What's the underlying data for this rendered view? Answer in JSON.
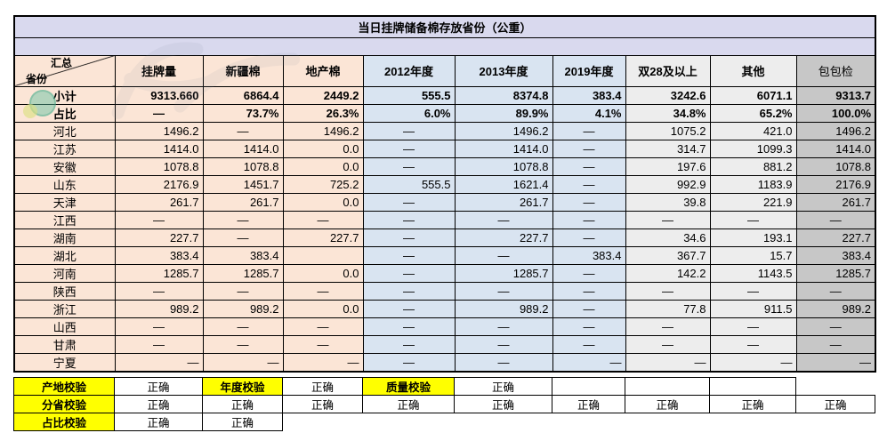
{
  "title": "当日挂牌储备棉存放省份（公重）",
  "main_table": {
    "corner": {
      "top": "汇总",
      "bottom": "省份"
    },
    "columns": [
      "挂牌量",
      "新疆棉",
      "地产棉",
      "2012年度",
      "2013年度",
      "2019年度",
      "双28及以上",
      "其他",
      "包包检"
    ],
    "rows": [
      {
        "label": "小计",
        "bold": true,
        "cells": [
          "9313.660",
          "6864.4",
          "2449.2",
          "555.5",
          "8374.8",
          "383.4",
          "3242.6",
          "6071.1",
          "9313.7"
        ]
      },
      {
        "label": "占比",
        "bold": true,
        "cells": [
          "—",
          "73.7%",
          "26.3%",
          "6.0%",
          "89.9%",
          "4.1%",
          "34.8%",
          "65.2%",
          "100.0%"
        ]
      },
      {
        "label": "河北",
        "cells": [
          "1496.2",
          "—",
          "1496.2",
          "—",
          "1496.2",
          "—",
          "1075.2",
          "421.0",
          "1496.2"
        ]
      },
      {
        "label": "江苏",
        "cells": [
          "1414.0",
          "1414.0",
          "0.0",
          "—",
          "1414.0",
          "—",
          "314.7",
          "1099.3",
          "1414.0"
        ]
      },
      {
        "label": "安徽",
        "cells": [
          "1078.8",
          "1078.8",
          "0.0",
          "—",
          "1078.8",
          "—",
          "197.6",
          "881.2",
          "1078.8"
        ]
      },
      {
        "label": "山东",
        "cells": [
          "2176.9",
          "1451.7",
          "725.2",
          "555.5",
          "1621.4",
          "—",
          "992.9",
          "1183.9",
          "2176.9"
        ]
      },
      {
        "label": "天津",
        "cells": [
          "261.7",
          "261.7",
          "0.0",
          "—",
          "261.7",
          "—",
          "39.8",
          "221.9",
          "261.7"
        ]
      },
      {
        "label": "江西",
        "cells": [
          "—",
          "—",
          "—",
          "—",
          "—",
          "—",
          "—",
          "—",
          "—"
        ]
      },
      {
        "label": "湖南",
        "cells": [
          "227.7",
          "—",
          "227.7",
          "—",
          "227.7",
          "—",
          "34.6",
          "193.1",
          "227.7"
        ]
      },
      {
        "label": "湖北",
        "cells": [
          "383.4",
          "383.4",
          "",
          "—",
          "—",
          "383.4",
          "367.7",
          "15.7",
          "383.4"
        ]
      },
      {
        "label": "河南",
        "cells": [
          "1285.7",
          "1285.7",
          "0.0",
          "—",
          "1285.7",
          "—",
          "142.2",
          "1143.5",
          "1285.7"
        ]
      },
      {
        "label": "陕西",
        "cells": [
          "—",
          "—",
          "—",
          "—",
          "—",
          "—",
          "—",
          "—",
          "—"
        ]
      },
      {
        "label": "浙江",
        "cells": [
          "989.2",
          "989.2",
          "0.0",
          "—",
          "989.2",
          "—",
          "77.8",
          "911.5",
          "989.2"
        ]
      },
      {
        "label": "山西",
        "cells": [
          "—",
          "—",
          "—",
          "—",
          "—",
          "—",
          "—",
          "—",
          "—"
        ]
      },
      {
        "label": "甘肃",
        "cells": [
          "—",
          "—",
          "—",
          "—",
          "—",
          "—",
          "—",
          "—",
          "—"
        ]
      },
      {
        "label": "宁夏",
        "cells": [
          "—",
          "—",
          "—",
          "—",
          "—",
          "—",
          "—",
          "—",
          "—"
        ],
        "align": [
          "right",
          "right",
          "right",
          "center",
          "center",
          "right",
          "right",
          "right",
          "right"
        ]
      }
    ]
  },
  "check_table": {
    "rows": [
      {
        "cells": [
          "产地校验",
          "正确",
          "年度校验",
          "正确",
          "质量校验",
          "正确",
          "",
          "",
          ""
        ],
        "yellow": [
          0,
          2,
          4
        ]
      },
      {
        "cells": [
          "分省校验",
          "正确",
          "正确",
          "正确",
          "正确",
          "正确",
          "正确",
          "正确",
          "正确",
          "正确"
        ],
        "yellow": [
          0
        ]
      },
      {
        "cells": [
          "占比校验",
          "正确",
          "正确"
        ],
        "yellow": [
          0
        ]
      }
    ]
  },
  "colors": {
    "title_bg": "#D9D9EE",
    "peach_bg": "#FBE5D6",
    "blue_bg": "#D9E4F1",
    "light_gray_bg": "#EDEDED",
    "dark_gray_bg": "#C7C7C7",
    "check_label_bg": "#FFFF00",
    "border": "#000000"
  }
}
